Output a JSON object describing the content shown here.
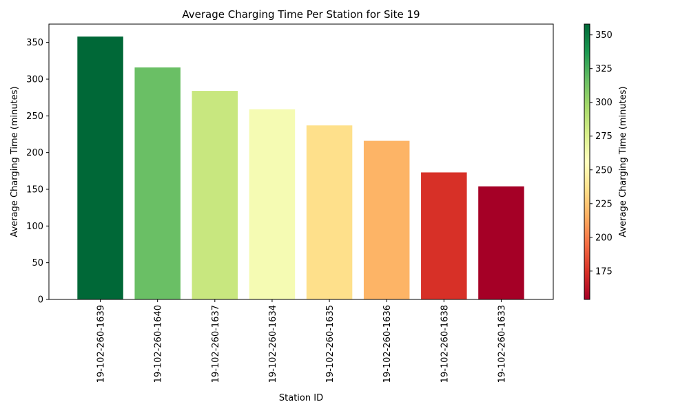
{
  "chart_data": {
    "type": "bar",
    "title": "Average Charging Time Per Station for Site 19",
    "xlabel": "Station ID",
    "ylabel": "Average Charging Time (minutes)",
    "ylim": [
      0,
      375
    ],
    "yticks": [
      0,
      50,
      100,
      150,
      200,
      250,
      300,
      350
    ],
    "categories": [
      "19-102-260-1639",
      "19-102-260-1640",
      "19-102-260-1637",
      "19-102-260-1634",
      "19-102-260-1635",
      "19-102-260-1636",
      "19-102-260-1638",
      "19-102-260-1633"
    ],
    "values": [
      358,
      316,
      284,
      259,
      237,
      216,
      173,
      154
    ],
    "bar_colors": [
      "#006837",
      "#6abf65",
      "#c8e77f",
      "#f5fbb3",
      "#fee08b",
      "#fdb466",
      "#d73027",
      "#a50026"
    ],
    "colorbar": {
      "label": "Average Charging Time (minutes)",
      "range": [
        154,
        358
      ],
      "ticks": [
        175,
        200,
        225,
        250,
        275,
        300,
        325,
        350
      ],
      "colormap": "RdYlGn",
      "stops": [
        "#a50026",
        "#d73027",
        "#f46d43",
        "#fdae61",
        "#fee08b",
        "#ffffbf",
        "#d9ef8b",
        "#a6d96a",
        "#66bd63",
        "#1a9850",
        "#006837"
      ]
    },
    "grid": false,
    "legend": "none"
  }
}
